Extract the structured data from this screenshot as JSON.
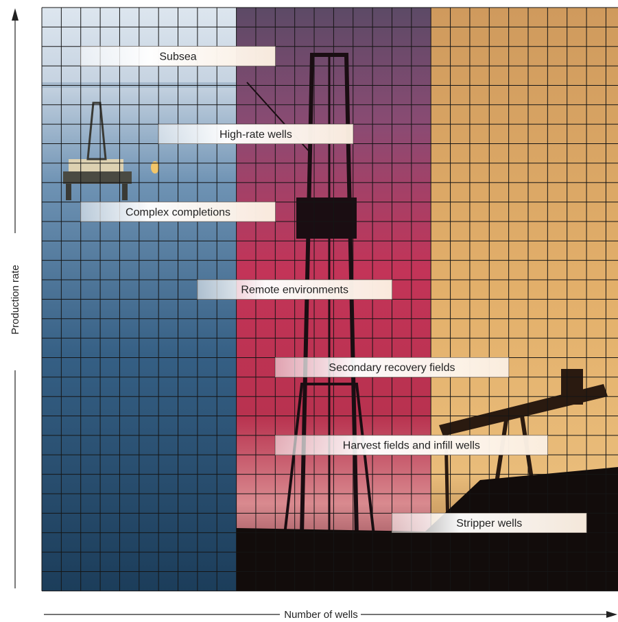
{
  "diagram": {
    "x_axis_label": "Number of wells",
    "y_axis_label": "Production rate",
    "panels": [
      {
        "name": "offshore sea with drilling platform",
        "colors": [
          "#b9c8d8",
          "#6d93b6",
          "#2f5f86",
          "#1b3f5e"
        ]
      },
      {
        "name": "drilling derrick at sunset",
        "colors": [
          "#6f5a78",
          "#b0426a",
          "#c93052",
          "#a01f3f"
        ]
      },
      {
        "name": "pumpjack at dusk",
        "colors": [
          "#d6a25f",
          "#e0ad68",
          "#e6b573",
          "#cf8f4e"
        ]
      }
    ],
    "grid_color": "#151515",
    "segments": [
      {
        "label": "Subsea",
        "start_col": 2,
        "end_col": 12,
        "row": 2
      },
      {
        "label": "High-rate wells",
        "start_col": 6,
        "end_col": 16,
        "row": 6
      },
      {
        "label": "Complex completions",
        "start_col": 2,
        "end_col": 12,
        "row": 10
      },
      {
        "label": "Remote environments",
        "start_col": 8,
        "end_col": 18,
        "row": 14
      },
      {
        "label": "Secondary recovery fields",
        "start_col": 12,
        "end_col": 24,
        "row": 18
      },
      {
        "label": "Harvest fields and infill wells",
        "start_col": 12,
        "end_col": 26,
        "row": 22
      },
      {
        "label": "Stripper wells",
        "start_col": 18,
        "end_col": 28,
        "row": 26
      }
    ]
  }
}
